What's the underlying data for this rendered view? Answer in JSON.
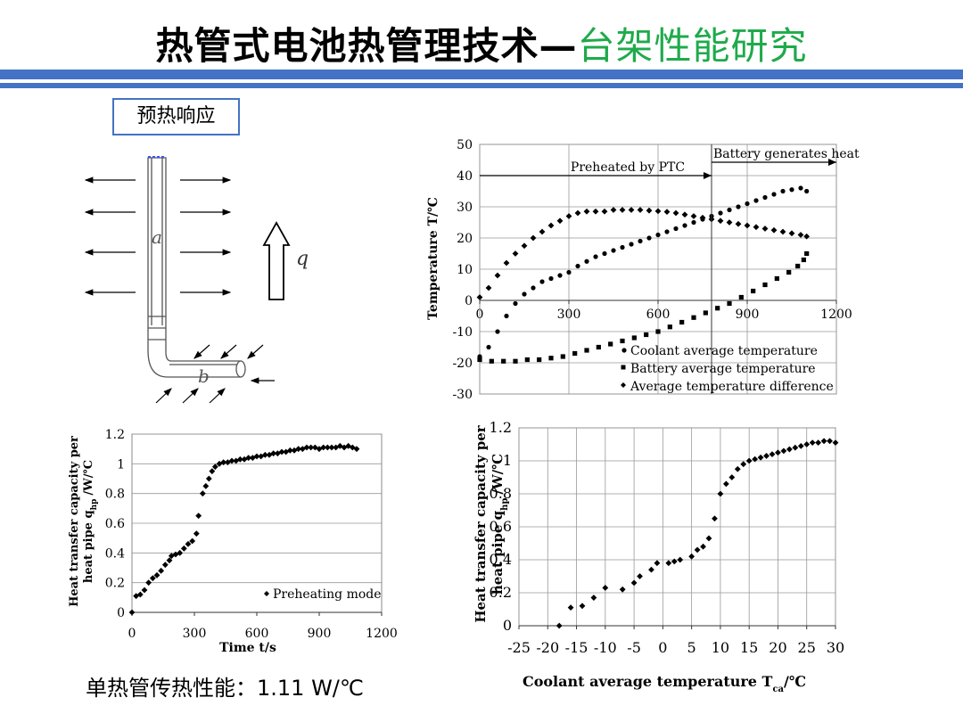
{
  "header": {
    "title_main": "热管式电池热管理技术—",
    "title_sub": "台架性能研究"
  },
  "section_tag": "预热响应",
  "schematic": {
    "label_a": "a",
    "label_b": "b",
    "label_q": "q"
  },
  "footer_note": "单热管传热性能：1.11 W/℃",
  "colors": {
    "accent": "#4472c4",
    "subtitle": "#1faa4b"
  },
  "chart_data": [
    {
      "id": "temperature",
      "type": "scatter",
      "title": "",
      "xlabel": "",
      "ylabel": "Temperature  T/℃",
      "xlim": [
        0,
        1200
      ],
      "ylim": [
        -30,
        50
      ],
      "x_ticks": [
        "0",
        "300",
        "600",
        "900",
        "1200"
      ],
      "y_ticks": [
        "50",
        "40",
        "30",
        "20",
        "10",
        "0",
        "-10",
        "-20",
        "-30"
      ],
      "x_tick_values": [
        0,
        300,
        600,
        900,
        1200
      ],
      "y_tick_values": [
        50,
        40,
        30,
        20,
        10,
        0,
        -10,
        -20,
        -30
      ],
      "annotations": [
        "Preheated by PTC",
        "Battery generates heat"
      ],
      "annotation_boundary_x": 780,
      "legend": {
        "position": "bottom-right"
      },
      "series": [
        {
          "name": "Coolant average temperature",
          "marker": "circle",
          "points": [
            [
              0,
              -18
            ],
            [
              30,
              -15
            ],
            [
              60,
              -10
            ],
            [
              90,
              -5
            ],
            [
              120,
              -1
            ],
            [
              150,
              2
            ],
            [
              180,
              4
            ],
            [
              210,
              6
            ],
            [
              240,
              7
            ],
            [
              270,
              8
            ],
            [
              300,
              9
            ],
            [
              330,
              11
            ],
            [
              360,
              12.5
            ],
            [
              390,
              14
            ],
            [
              420,
              15
            ],
            [
              450,
              16
            ],
            [
              480,
              17
            ],
            [
              510,
              18
            ],
            [
              540,
              19
            ],
            [
              570,
              20
            ],
            [
              600,
              21
            ],
            [
              630,
              22
            ],
            [
              660,
              23
            ],
            [
              690,
              24
            ],
            [
              720,
              25
            ],
            [
              750,
              26
            ],
            [
              780,
              27
            ],
            [
              810,
              28
            ],
            [
              840,
              29
            ],
            [
              870,
              30
            ],
            [
              900,
              31
            ],
            [
              930,
              32
            ],
            [
              960,
              33
            ],
            [
              990,
              34
            ],
            [
              1020,
              35
            ],
            [
              1050,
              35.5
            ],
            [
              1080,
              36
            ],
            [
              1100,
              35
            ]
          ]
        },
        {
          "name": "Battery average temperature",
          "marker": "square",
          "points": [
            [
              0,
              -19
            ],
            [
              40,
              -19.5
            ],
            [
              80,
              -19.5
            ],
            [
              120,
              -19.5
            ],
            [
              160,
              -19
            ],
            [
              200,
              -19
            ],
            [
              240,
              -18.5
            ],
            [
              280,
              -18
            ],
            [
              320,
              -17
            ],
            [
              360,
              -16
            ],
            [
              400,
              -15
            ],
            [
              440,
              -14
            ],
            [
              480,
              -13
            ],
            [
              520,
              -12
            ],
            [
              560,
              -11
            ],
            [
              600,
              -10
            ],
            [
              640,
              -8.5
            ],
            [
              680,
              -7
            ],
            [
              720,
              -5.5
            ],
            [
              760,
              -4
            ],
            [
              800,
              -2.5
            ],
            [
              840,
              -1
            ],
            [
              880,
              1
            ],
            [
              920,
              3
            ],
            [
              960,
              5
            ],
            [
              1000,
              7
            ],
            [
              1040,
              9
            ],
            [
              1070,
              11
            ],
            [
              1090,
              13
            ],
            [
              1100,
              15
            ]
          ]
        },
        {
          "name": "Average temperature difference",
          "marker": "diamond",
          "points": [
            [
              0,
              1
            ],
            [
              30,
              4
            ],
            [
              60,
              8
            ],
            [
              90,
              12
            ],
            [
              120,
              15
            ],
            [
              150,
              17.5
            ],
            [
              180,
              20
            ],
            [
              210,
              22
            ],
            [
              240,
              24
            ],
            [
              270,
              25.5
            ],
            [
              300,
              27
            ],
            [
              330,
              28
            ],
            [
              360,
              28.5
            ],
            [
              390,
              28.5
            ],
            [
              420,
              28.5
            ],
            [
              450,
              29
            ],
            [
              480,
              29
            ],
            [
              510,
              29
            ],
            [
              540,
              29
            ],
            [
              570,
              28.8
            ],
            [
              600,
              28.6
            ],
            [
              630,
              28.4
            ],
            [
              660,
              28
            ],
            [
              690,
              27.5
            ],
            [
              720,
              27
            ],
            [
              750,
              26.5
            ],
            [
              780,
              26
            ],
            [
              810,
              25.5
            ],
            [
              840,
              25
            ],
            [
              870,
              24.5
            ],
            [
              900,
              24
            ],
            [
              930,
              23.5
            ],
            [
              960,
              23
            ],
            [
              990,
              22.5
            ],
            [
              1020,
              22
            ],
            [
              1050,
              21.5
            ],
            [
              1080,
              21
            ],
            [
              1100,
              20.5
            ]
          ]
        }
      ]
    },
    {
      "id": "capacity_vs_time",
      "type": "scatter",
      "title": "",
      "xlabel": "Time  t/s",
      "ylabel_line1": "Heat  transfer capacity per",
      "ylabel_line2": "heat pipe  q",
      "ylabel_sub": "hp",
      "ylabel_unit": "/W/℃",
      "xlim": [
        0,
        1200
      ],
      "ylim": [
        0,
        1.2
      ],
      "x_ticks": [
        "0",
        "300",
        "600",
        "900",
        "1200"
      ],
      "y_ticks": [
        "1.2",
        "1",
        "0.8",
        "0.6",
        "0.4",
        "0.2",
        "0"
      ],
      "x_tick_values": [
        0,
        300,
        600,
        900,
        1200
      ],
      "y_tick_values": [
        1.2,
        1,
        0.8,
        0.6,
        0.4,
        0.2,
        0
      ],
      "legend": {
        "position": "bottom-right"
      },
      "series": [
        {
          "name": "Preheating mode",
          "marker": "diamond",
          "points": [
            [
              0,
              0
            ],
            [
              20,
              0.11
            ],
            [
              40,
              0.12
            ],
            [
              60,
              0.15
            ],
            [
              80,
              0.2
            ],
            [
              100,
              0.23
            ],
            [
              120,
              0.25
            ],
            [
              140,
              0.28
            ],
            [
              160,
              0.32
            ],
            [
              180,
              0.35
            ],
            [
              190,
              0.38
            ],
            [
              210,
              0.39
            ],
            [
              230,
              0.4
            ],
            [
              250,
              0.43
            ],
            [
              270,
              0.46
            ],
            [
              290,
              0.48
            ],
            [
              310,
              0.53
            ],
            [
              320,
              0.65
            ],
            [
              340,
              0.8
            ],
            [
              355,
              0.85
            ],
            [
              370,
              0.9
            ],
            [
              385,
              0.95
            ],
            [
              400,
              0.98
            ],
            [
              420,
              1.0
            ],
            [
              440,
              1.01
            ],
            [
              460,
              1.01
            ],
            [
              480,
              1.02
            ],
            [
              500,
              1.02
            ],
            [
              520,
              1.03
            ],
            [
              540,
              1.03
            ],
            [
              560,
              1.04
            ],
            [
              580,
              1.04
            ],
            [
              600,
              1.05
            ],
            [
              620,
              1.05
            ],
            [
              640,
              1.06
            ],
            [
              660,
              1.06
            ],
            [
              680,
              1.07
            ],
            [
              700,
              1.07
            ],
            [
              720,
              1.08
            ],
            [
              740,
              1.08
            ],
            [
              760,
              1.09
            ],
            [
              780,
              1.09
            ],
            [
              800,
              1.1
            ],
            [
              820,
              1.1
            ],
            [
              840,
              1.11
            ],
            [
              860,
              1.11
            ],
            [
              880,
              1.11
            ],
            [
              900,
              1.1
            ],
            [
              920,
              1.11
            ],
            [
              940,
              1.11
            ],
            [
              960,
              1.11
            ],
            [
              980,
              1.11
            ],
            [
              1000,
              1.12
            ],
            [
              1020,
              1.11
            ],
            [
              1040,
              1.12
            ],
            [
              1060,
              1.11
            ],
            [
              1080,
              1.1
            ]
          ]
        }
      ]
    },
    {
      "id": "capacity_vs_coolant",
      "type": "scatter",
      "title": "",
      "xlabel": "Coolant average temperature T",
      "xlabel_sub": "ca",
      "xlabel_unit": "/℃",
      "ylabel_line1": "Heat  transfer capacity per",
      "ylabel_line2": "heat pipe  q",
      "ylabel_sub": "hp",
      "ylabel_unit": "/W/℃",
      "xlim": [
        -25,
        30
      ],
      "ylim": [
        0,
        1.2
      ],
      "x_ticks": [
        "-25",
        "-20",
        "-15",
        "-10",
        "-5",
        "0",
        "5",
        "10",
        "15",
        "20",
        "25",
        "30"
      ],
      "y_ticks": [
        "1.2",
        "1",
        "0.8",
        "0.6",
        "0.4",
        "0.2",
        "0"
      ],
      "x_tick_values": [
        -25,
        -20,
        -15,
        -10,
        -5,
        0,
        5,
        10,
        15,
        20,
        25,
        30
      ],
      "y_tick_values": [
        1.2,
        1,
        0.8,
        0.6,
        0.4,
        0.2,
        0
      ],
      "series": [
        {
          "name": "",
          "marker": "diamond",
          "points": [
            [
              -18,
              0
            ],
            [
              -16,
              0.11
            ],
            [
              -14,
              0.12
            ],
            [
              -12,
              0.17
            ],
            [
              -10,
              0.23
            ],
            [
              -7,
              0.22
            ],
            [
              -5,
              0.26
            ],
            [
              -4,
              0.3
            ],
            [
              -2,
              0.34
            ],
            [
              -1,
              0.38
            ],
            [
              1,
              0.38
            ],
            [
              2,
              0.39
            ],
            [
              3,
              0.4
            ],
            [
              5,
              0.42
            ],
            [
              6,
              0.46
            ],
            [
              7,
              0.48
            ],
            [
              8,
              0.53
            ],
            [
              9,
              0.65
            ],
            [
              10,
              0.8
            ],
            [
              11,
              0.86
            ],
            [
              12,
              0.9
            ],
            [
              13,
              0.95
            ],
            [
              14,
              0.98
            ],
            [
              15,
              1.0
            ],
            [
              16,
              1.01
            ],
            [
              17,
              1.02
            ],
            [
              18,
              1.03
            ],
            [
              19,
              1.04
            ],
            [
              20,
              1.05
            ],
            [
              21,
              1.06
            ],
            [
              22,
              1.07
            ],
            [
              23,
              1.08
            ],
            [
              24,
              1.09
            ],
            [
              25,
              1.1
            ],
            [
              26,
              1.11
            ],
            [
              27,
              1.11
            ],
            [
              28,
              1.12
            ],
            [
              29,
              1.12
            ],
            [
              30,
              1.11
            ]
          ]
        }
      ]
    }
  ]
}
